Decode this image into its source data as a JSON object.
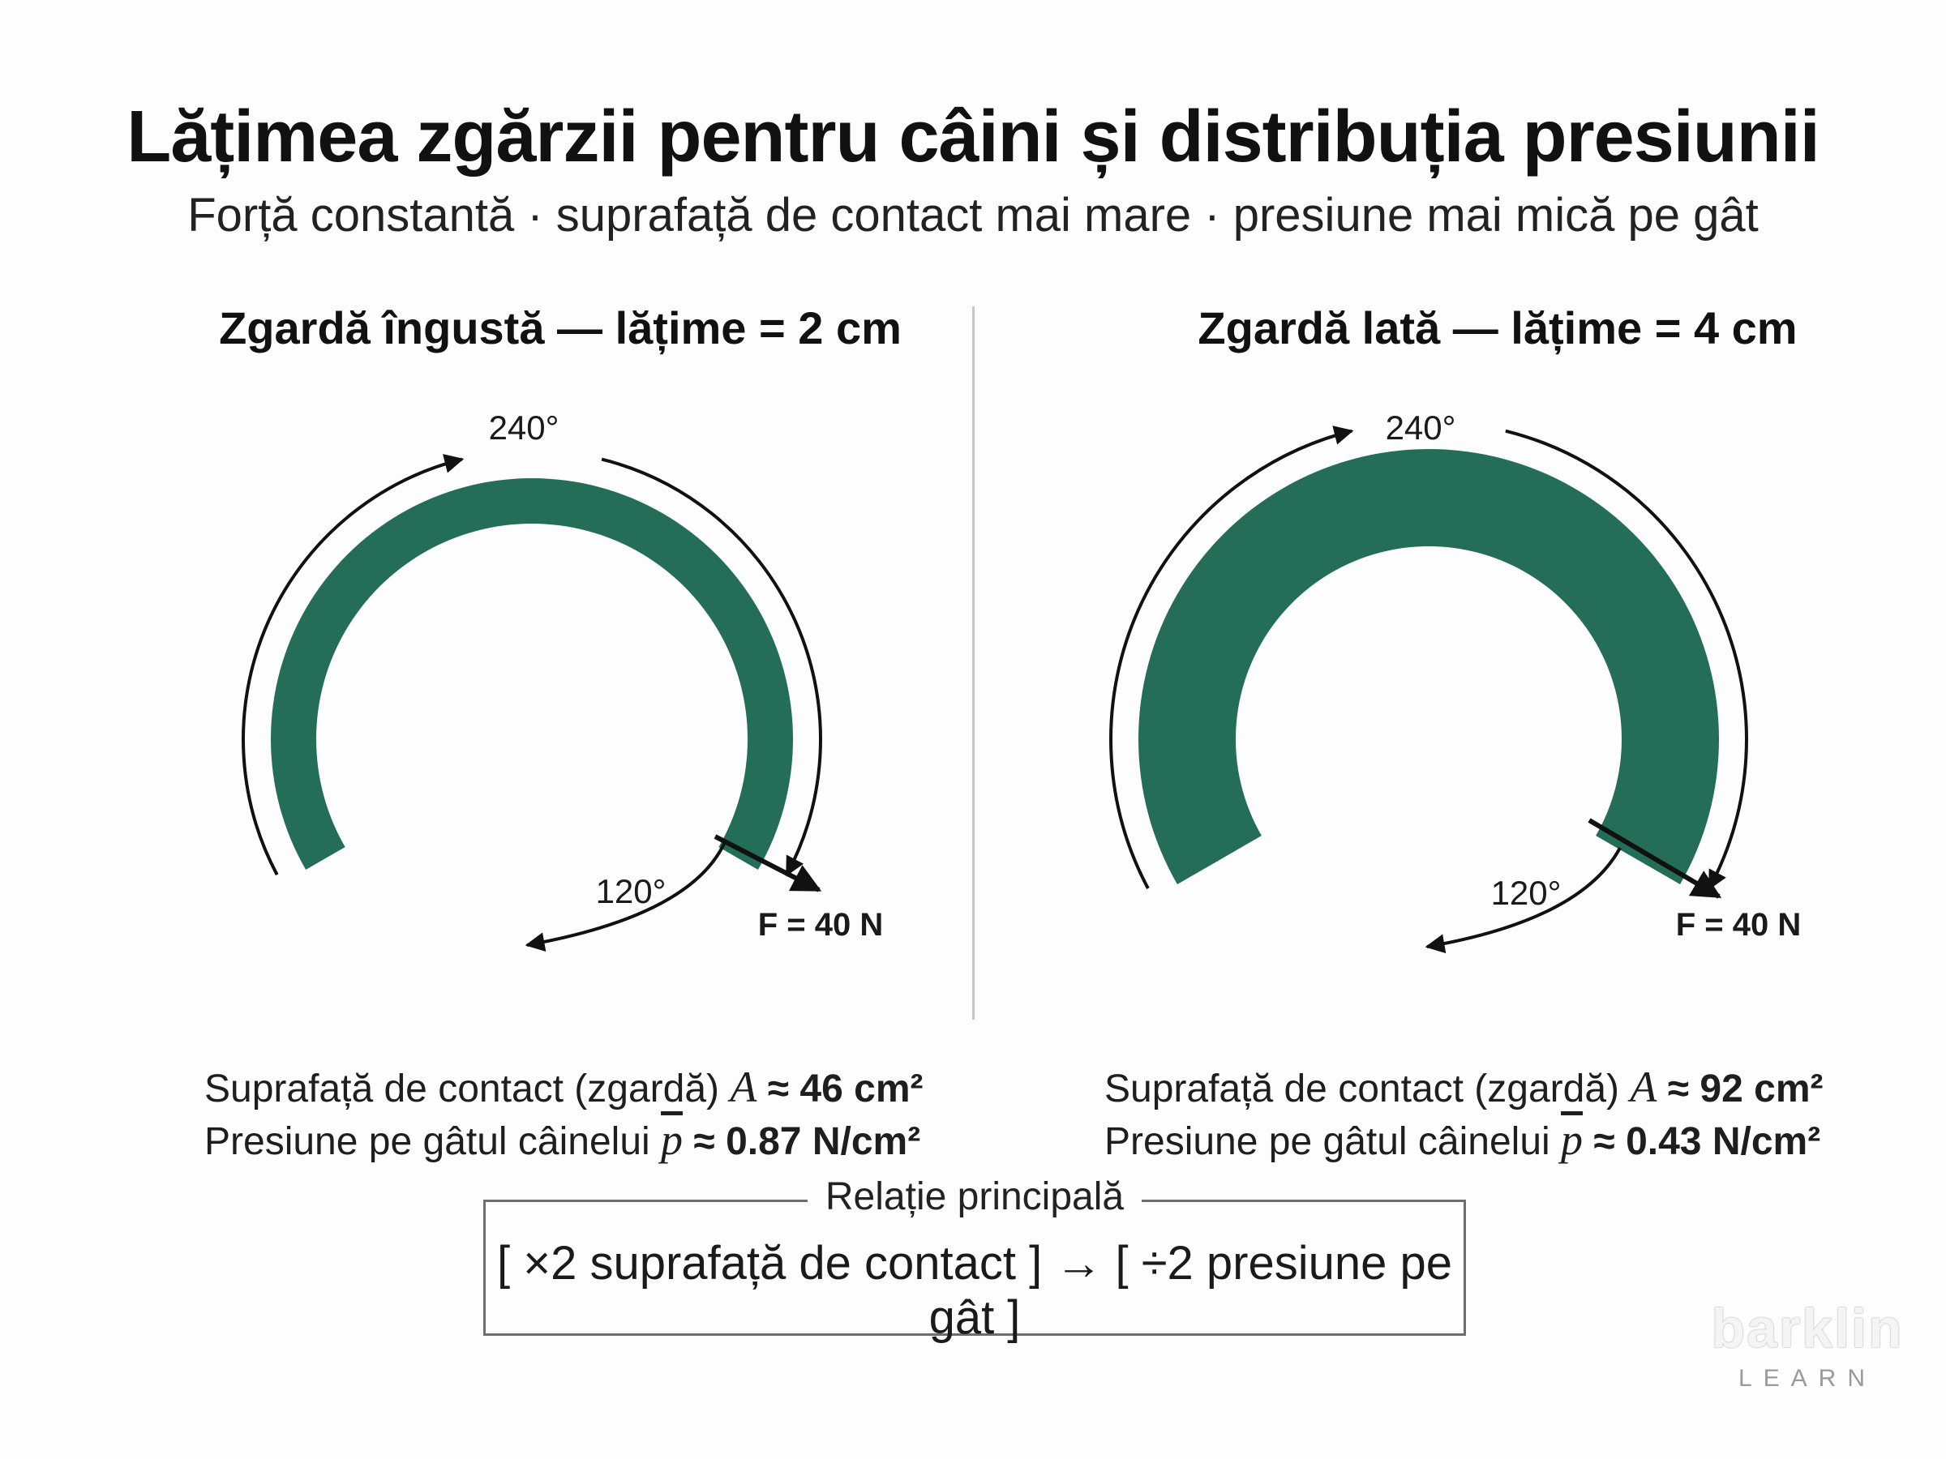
{
  "header": {
    "title": "Lățimea zgărzii pentru câini și distribuția presiunii",
    "subtitle": "Forță constantă · suprafață de contact mai mare · presiune mai mică pe gât"
  },
  "colors": {
    "collar": "#246e58",
    "accent_text": "#111111",
    "divider": "#c6c6c6",
    "box_border": "#6e6e6e"
  },
  "panels": {
    "left": {
      "title": "Zgardă îngustă — lățime = 2 cm",
      "arc_label": "240°",
      "gap_label": "120°",
      "force_label": "F = 40 N",
      "area_prefix": "Suprafață de contact (zgardă) ",
      "area_symbol": "A",
      "area_value": "≈ 46 cm²",
      "pressure_prefix": "Presiune pe gâtul câinelui ",
      "pressure_symbol": "p",
      "pressure_value": "≈ 0.87 N/cm²"
    },
    "right": {
      "title": "Zgardă lată — lățime = 4 cm",
      "arc_label": "240°",
      "gap_label": "120°",
      "force_label": "F = 40 N",
      "area_prefix": "Suprafață de contact (zgardă) ",
      "area_symbol": "A",
      "area_value": "≈ 92 cm²",
      "pressure_prefix": "Presiune pe gâtul câinelui ",
      "pressure_symbol": "p",
      "pressure_value": "≈ 0.43 N/cm²"
    }
  },
  "relation": {
    "label": "Relație principală",
    "text": "[ ×2 suprafață de contact ] → [ ÷2 presiune pe gât ]"
  },
  "logo": {
    "name": "barklin",
    "sub": "LEARN"
  }
}
